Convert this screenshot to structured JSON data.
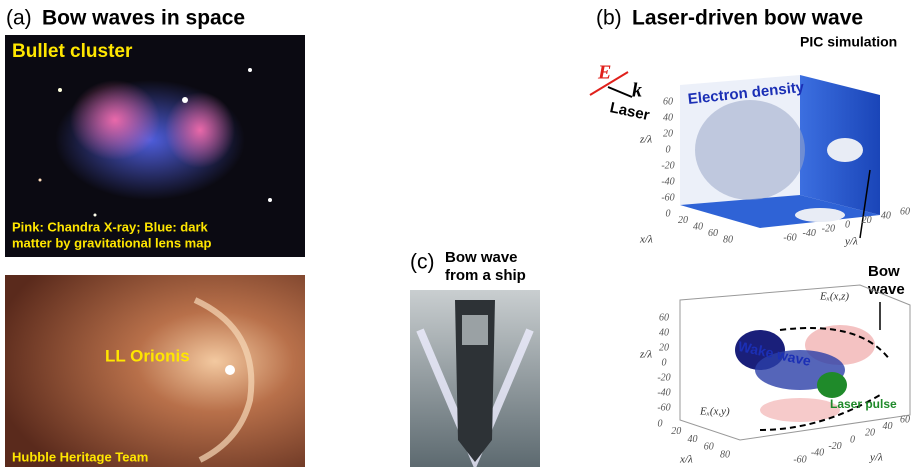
{
  "panel_a": {
    "label": "(a)",
    "title": "Bow waves in space",
    "image1": {
      "title": "Bullet cluster",
      "caption": [
        "Pink: Chandra X-ray; Blue: dark",
        "matter by gravitational lens map"
      ]
    },
    "image2": {
      "title": "LL Orionis",
      "credit": "Hubble Heritage Team"
    }
  },
  "panel_b": {
    "label": "(b)",
    "title": "Laser-driven bow wave",
    "subtitle": "PIC simulation",
    "top_plot": {
      "field_label": "E",
      "wave_label": "k",
      "laser_label": "Laser",
      "density_label": "Electron density",
      "z_axis": "z/λ",
      "x_axis": "x/λ",
      "y_axis": "y/λ",
      "z_ticks": [
        60,
        40,
        20,
        0,
        -20,
        -40,
        -60
      ],
      "x_ticks": [
        0,
        20,
        40,
        60,
        80
      ],
      "y_ticks": [
        -60,
        -40,
        -20,
        0,
        20,
        40,
        60
      ]
    },
    "annotation": [
      "Bow",
      "wave"
    ],
    "bottom_plot": {
      "wake_label": "Wake wave",
      "ex_xz": "Eₓ(x,z)",
      "ex_xy": "Eₓ(x,y)",
      "pulse_label": "Laser pulse",
      "z_axis": "z/λ",
      "x_axis": "x/λ",
      "y_axis": "y/λ",
      "z_ticks": [
        60,
        40,
        20,
        0,
        -20,
        -40,
        -60
      ],
      "x_ticks": [
        0,
        20,
        40,
        60,
        80
      ],
      "y_ticks": [
        -60,
        -40,
        -20,
        0,
        20,
        40,
        60
      ]
    }
  },
  "panel_c": {
    "label": "(c)",
    "title": [
      "Bow wave",
      "from a ship"
    ]
  }
}
